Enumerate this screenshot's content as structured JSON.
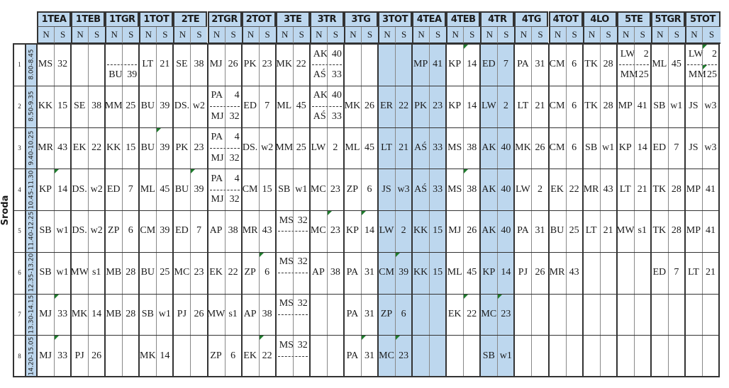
{
  "day": "Środa",
  "highlight_color": "#bdd7ee",
  "comment_mark_color": "#1e7b2c",
  "sub_headers": {
    "n": "N",
    "s": "S"
  },
  "classes": [
    "1TEA",
    "1TEB",
    "1TGR",
    "1TOT",
    "2TE",
    "2TGR",
    "2TOT",
    "3TE",
    "3TR",
    "3TG",
    "3TOT",
    "4TEA",
    "4TEB",
    "4TR",
    "4TG",
    "4TOT",
    "4LO",
    "5TE",
    "5TGR",
    "5TOT"
  ],
  "highlighted_classes": [
    "3TOT",
    "4TEA",
    "4TR"
  ],
  "rows": [
    {
      "num": "1",
      "time": "8.00-8.45",
      "cells": [
        [
          "MS",
          "32"
        ],
        [
          "",
          ""
        ],
        {
          "top": [
            "",
            ""
          ],
          "bottom": [
            "BU",
            "39"
          ]
        },
        [
          "LT",
          "21"
        ],
        [
          "SE",
          "38"
        ],
        [
          "MJ",
          "26"
        ],
        [
          "PK",
          "23"
        ],
        [
          "MK",
          "22"
        ],
        {
          "top": [
            "AK",
            "40"
          ],
          "bottom": [
            "AŚ",
            "33"
          ]
        },
        [
          "",
          ""
        ],
        [
          "",
          ""
        ],
        [
          "MP",
          "41"
        ],
        [
          "KP",
          "14"
        ],
        [
          "ED",
          "7"
        ],
        [
          "PA",
          "31"
        ],
        [
          "CM",
          "6"
        ],
        [
          "TK",
          "28"
        ],
        {
          "top": [
            "LW",
            "2"
          ],
          "bottom": [
            "MM",
            "25"
          ]
        },
        [
          "ML",
          "45"
        ],
        {
          "top": [
            "LW",
            "2"
          ],
          "bottom": [
            "MM",
            "25"
          ]
        }
      ]
    },
    {
      "num": "2",
      "time": "8.50-9.35",
      "cells": [
        [
          "KK",
          "15"
        ],
        [
          "SE",
          "38"
        ],
        [
          "MM",
          "25"
        ],
        [
          "BU",
          "39"
        ],
        [
          "DS.",
          "w2"
        ],
        {
          "top": [
            "PA",
            "4"
          ],
          "bottom": [
            "MJ",
            "32"
          ]
        },
        [
          "ED",
          "7"
        ],
        [
          "ML",
          "45"
        ],
        {
          "top": [
            "AK",
            "40"
          ],
          "bottom": [
            "AŚ",
            "33"
          ]
        },
        [
          "MK",
          "26"
        ],
        [
          "ER",
          "22"
        ],
        [
          "PK",
          "23"
        ],
        [
          "KP",
          "14"
        ],
        [
          "LW",
          "2"
        ],
        [
          "LT",
          "21"
        ],
        [
          "CM",
          "6"
        ],
        [
          "TK",
          "28"
        ],
        [
          "MP",
          "41"
        ],
        [
          "SB",
          "w1"
        ],
        [
          "JS",
          "w3"
        ]
      ]
    },
    {
      "num": "3",
      "time": "9.40-10.25",
      "cells": [
        [
          "MR",
          "43"
        ],
        [
          "EK",
          "22"
        ],
        [
          "KK",
          "15"
        ],
        [
          "BU",
          "39"
        ],
        [
          "PK",
          "23"
        ],
        {
          "top": [
            "PA",
            "4"
          ],
          "bottom": [
            "MJ",
            "32"
          ]
        },
        [
          "DS.",
          "w2"
        ],
        [
          "MM",
          "25"
        ],
        [
          "LW",
          "2"
        ],
        [
          "ML",
          "45"
        ],
        [
          "LT",
          "21"
        ],
        [
          "AŚ",
          "33"
        ],
        [
          "MS",
          "38"
        ],
        [
          "AK",
          "40"
        ],
        [
          "MK",
          "26"
        ],
        [
          "CM",
          "6"
        ],
        [
          "SB",
          "w1"
        ],
        [
          "KP",
          "14"
        ],
        [
          "ED",
          "7"
        ],
        [
          "JS",
          "w3"
        ]
      ]
    },
    {
      "num": "4",
      "time": "10.45-11.30",
      "cells": [
        [
          "KP",
          "14"
        ],
        [
          "DS.",
          "w2"
        ],
        [
          "ED",
          "7"
        ],
        [
          "ML",
          "45"
        ],
        [
          "BU",
          "39"
        ],
        {
          "top": [
            "PA",
            "4"
          ],
          "bottom": [
            "MJ",
            "32"
          ]
        },
        [
          "CM",
          "15"
        ],
        [
          "SB",
          "w1"
        ],
        [
          "MC",
          "23"
        ],
        [
          "ZP",
          "6"
        ],
        [
          "JS",
          "w3"
        ],
        [
          "AŚ",
          "33"
        ],
        [
          "MS",
          "38"
        ],
        [
          "AK",
          "40"
        ],
        [
          "LW",
          "2"
        ],
        [
          "EK",
          "22"
        ],
        [
          "MR",
          "43"
        ],
        [
          "LT",
          "21"
        ],
        [
          "TK",
          "28"
        ],
        [
          "MP",
          "41"
        ]
      ]
    },
    {
      "num": "5",
      "time": "11.40-12.25",
      "cells": [
        [
          "SB",
          "w1"
        ],
        [
          "DS.",
          "w2"
        ],
        [
          "ZP",
          "6"
        ],
        [
          "CM",
          "39"
        ],
        [
          "ED",
          "7"
        ],
        [
          "AP",
          "38"
        ],
        [
          "MR",
          "43"
        ],
        {
          "top": [
            "MS",
            "32"
          ],
          "bottom": [
            "",
            ""
          ]
        },
        [
          "MC",
          "23"
        ],
        [
          "KP",
          "14"
        ],
        [
          "LW",
          "2"
        ],
        [
          "KK",
          "15"
        ],
        [
          "MJ",
          "26"
        ],
        [
          "AK",
          "40"
        ],
        [
          "PA",
          "31"
        ],
        [
          "BU",
          "25"
        ],
        [
          "LT",
          "21"
        ],
        [
          "MW",
          "s1"
        ],
        [
          "TK",
          "28"
        ],
        [
          "MP",
          "41"
        ]
      ]
    },
    {
      "num": "6",
      "time": "12.35-13.20",
      "cells": [
        [
          "SB",
          "w1"
        ],
        [
          "MW",
          "s1"
        ],
        [
          "MB",
          "28"
        ],
        [
          "BU",
          "25"
        ],
        [
          "MC",
          "23"
        ],
        [
          "EK",
          "22"
        ],
        [
          "ZP",
          "6"
        ],
        {
          "top": [
            "MS",
            "32"
          ],
          "bottom": [
            "",
            ""
          ]
        },
        [
          "AP",
          "38"
        ],
        [
          "PA",
          "31"
        ],
        [
          "CM",
          "39"
        ],
        [
          "KK",
          "15"
        ],
        [
          "ML",
          "45"
        ],
        [
          "KP",
          "14"
        ],
        [
          "PJ",
          "26"
        ],
        [
          "MR",
          "43"
        ],
        [
          "",
          ""
        ],
        [
          "",
          ""
        ],
        [
          "ED",
          "7"
        ],
        [
          "LT",
          "21"
        ]
      ]
    },
    {
      "num": "7",
      "time": "13.30-14.15",
      "cells": [
        [
          "MJ",
          "33"
        ],
        [
          "MK",
          "14"
        ],
        [
          "MB",
          "28"
        ],
        [
          "SB",
          "w1"
        ],
        [
          "PJ",
          "26"
        ],
        [
          "MW",
          "s1"
        ],
        [
          "AP",
          "38"
        ],
        {
          "top": [
            "MS",
            "32"
          ],
          "bottom": [
            "",
            ""
          ]
        },
        [
          "",
          ""
        ],
        [
          "PA",
          "31"
        ],
        [
          "ZP",
          "6"
        ],
        [
          "",
          ""
        ],
        [
          "EK",
          "22"
        ],
        [
          "MC",
          "23"
        ],
        [
          "",
          ""
        ],
        [
          "",
          ""
        ],
        [
          "",
          ""
        ],
        [
          "",
          ""
        ],
        [
          "",
          ""
        ],
        [
          "",
          ""
        ]
      ]
    },
    {
      "num": "8",
      "time": "14.20-15.05",
      "cells": [
        [
          "MJ",
          "33"
        ],
        [
          "PJ",
          "26"
        ],
        [
          "",
          ""
        ],
        [
          "MK",
          "14"
        ],
        [
          "",
          ""
        ],
        [
          "ZP",
          "6"
        ],
        [
          "EK",
          "22"
        ],
        {
          "top": [
            "MS",
            "32"
          ],
          "bottom": [
            "",
            ""
          ]
        },
        [
          "",
          ""
        ],
        [
          "PA",
          "31"
        ],
        [
          "MC",
          "23"
        ],
        [
          "",
          ""
        ],
        [
          "",
          ""
        ],
        [
          "SB",
          "w1"
        ],
        [
          "",
          ""
        ],
        [
          "",
          ""
        ],
        [
          "",
          ""
        ],
        [
          "",
          ""
        ],
        [
          "",
          ""
        ],
        [
          "",
          ""
        ]
      ]
    }
  ],
  "comment_marks": [
    {
      "row": 1,
      "class": "4TEB",
      "sub": "S"
    },
    {
      "row": 1,
      "class": "5TOT",
      "sub": "S"
    },
    {
      "row": 1,
      "class": "5TOT",
      "sub": "S",
      "half": "bottom"
    },
    {
      "row": 3,
      "class": "1TOT",
      "sub": "S"
    },
    {
      "row": 4,
      "class": "1TEA",
      "sub": "S"
    },
    {
      "row": 4,
      "class": "2TE",
      "sub": "S"
    },
    {
      "row": 4,
      "class": "4TEB",
      "sub": "S"
    },
    {
      "row": 5,
      "class": "3TR",
      "sub": "S"
    },
    {
      "row": 5,
      "class": "3TG",
      "sub": "S"
    },
    {
      "row": 6,
      "class": "2TOT",
      "sub": "S"
    },
    {
      "row": 6,
      "class": "3TOT",
      "sub": "S"
    },
    {
      "row": 7,
      "class": "1TEA",
      "sub": "S"
    },
    {
      "row": 7,
      "class": "4TEB",
      "sub": "S"
    },
    {
      "row": 7,
      "class": "4TR",
      "sub": "S"
    },
    {
      "row": 8,
      "class": "1TEA",
      "sub": "S"
    },
    {
      "row": 8,
      "class": "2TOT",
      "sub": "S"
    },
    {
      "row": 8,
      "class": "3TG",
      "sub": "S"
    },
    {
      "row": 8,
      "class": "3TOT",
      "sub": "S"
    }
  ]
}
